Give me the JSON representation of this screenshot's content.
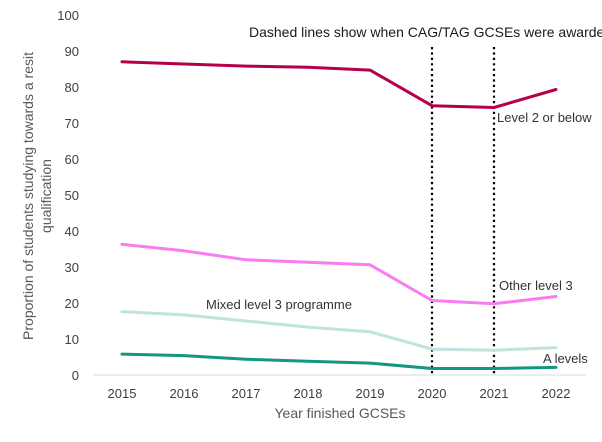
{
  "chart_data": {
    "type": "line",
    "x": [
      2015,
      2016,
      2017,
      2018,
      2019,
      2020,
      2021,
      2022
    ],
    "xlabel": "Year finished GCSEs",
    "ylabel_lines": [
      "Proportion of students studying towards a resit",
      "qualification"
    ],
    "ylim": [
      0,
      100
    ],
    "yticks": [
      0,
      10,
      20,
      30,
      40,
      50,
      60,
      70,
      80,
      90,
      100
    ],
    "grid": false,
    "legend": "none",
    "annotation": "Dashed lines show when CAG/TAG GCSEs were awarded",
    "marker_years": [
      2020,
      2021
    ],
    "series": [
      {
        "name": "Level 2 or below",
        "color": "#b5004b",
        "values": [
          87,
          86.4,
          85.8,
          85.5,
          84.7,
          74.8,
          74.3,
          79.3
        ]
      },
      {
        "name": "Other level 3",
        "color": "#f97cf0",
        "values": [
          36.3,
          34.5,
          32,
          31.3,
          30.6,
          20.7,
          19.8,
          21.8
        ]
      },
      {
        "name": "Mixed level 3 programme",
        "color": "#bfe4e0",
        "values": [
          17.6,
          16.7,
          15,
          13.3,
          12,
          7.2,
          6.9,
          7.6
        ]
      },
      {
        "name": "A levels",
        "color": "#14967f",
        "values": [
          5.8,
          5.4,
          4.4,
          3.8,
          3.3,
          1.8,
          1.8,
          2.1
        ]
      }
    ]
  }
}
